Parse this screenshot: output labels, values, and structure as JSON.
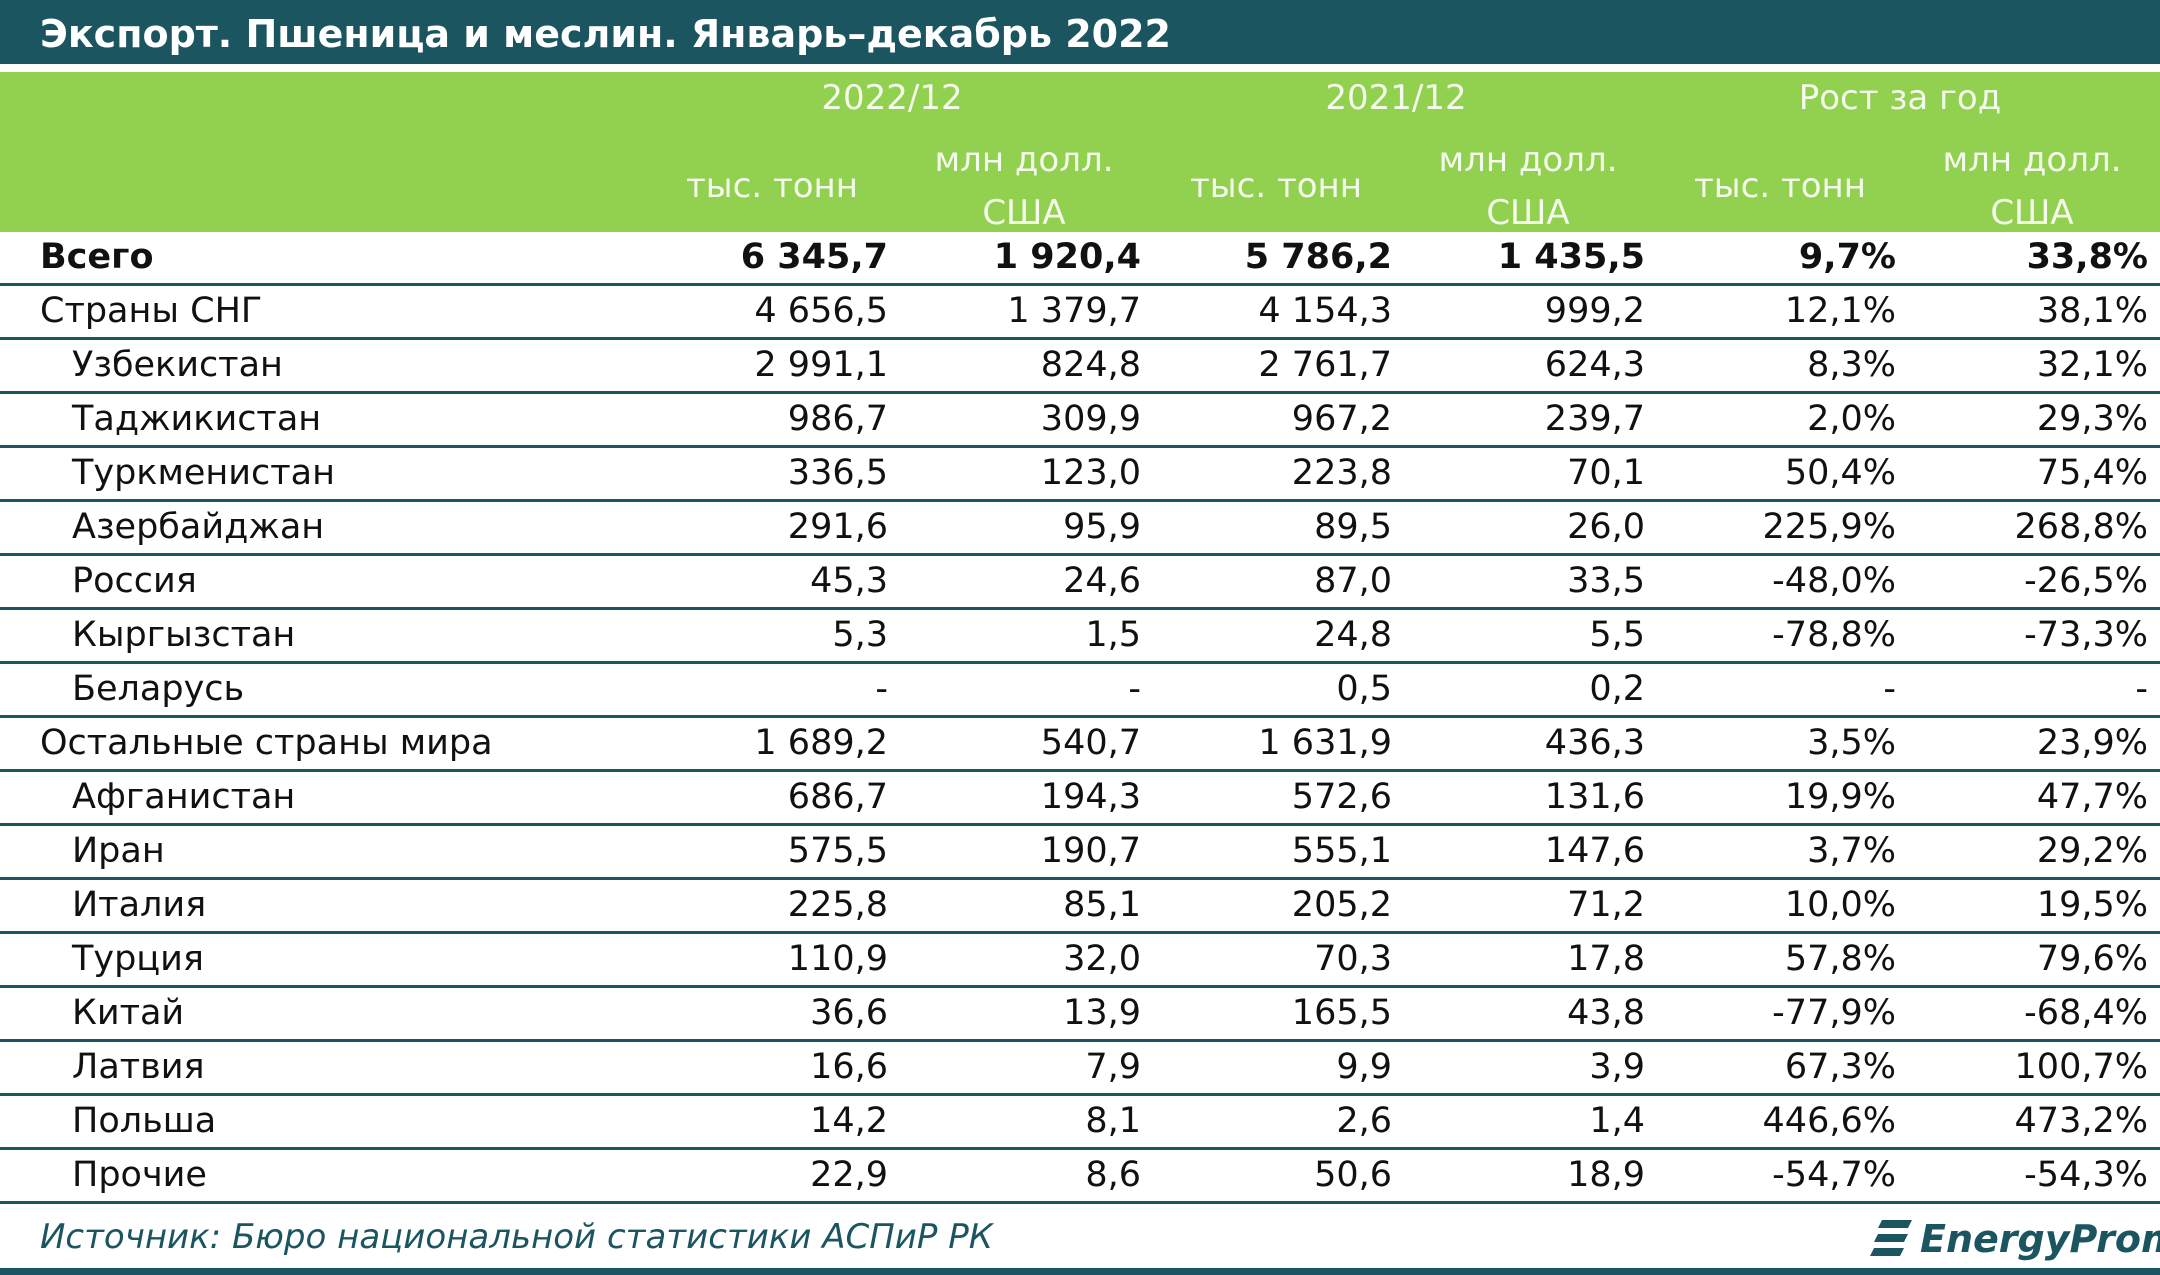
{
  "title": "Экспорт. Пшеница и меслин. Январь–декабрь 2022",
  "header": {
    "groups": [
      "2022/12",
      "2021/12",
      "Рост за год"
    ],
    "unit_tons": "тыс. тонн",
    "unit_usd_line1": "млн долл.",
    "unit_usd_line2": "США"
  },
  "rows": [
    {
      "name": "Всего",
      "values": [
        "6 345,7",
        "1 920,4",
        "5 786,2",
        "1 435,5",
        "9,7%",
        "33,8%"
      ]
    },
    {
      "name": "Страны СНГ",
      "values": [
        "4 656,5",
        "1 379,7",
        "4 154,3",
        "999,2",
        "12,1%",
        "38,1%"
      ]
    },
    {
      "name": "Узбекистан",
      "values": [
        "2 991,1",
        "824,8",
        "2 761,7",
        "624,3",
        "8,3%",
        "32,1%"
      ]
    },
    {
      "name": "Таджикистан",
      "values": [
        "986,7",
        "309,9",
        "967,2",
        "239,7",
        "2,0%",
        "29,3%"
      ]
    },
    {
      "name": "Туркменистан",
      "values": [
        "336,5",
        "123,0",
        "223,8",
        "70,1",
        "50,4%",
        "75,4%"
      ]
    },
    {
      "name": "Азербайджан",
      "values": [
        "291,6",
        "95,9",
        "89,5",
        "26,0",
        "225,9%",
        "268,8%"
      ]
    },
    {
      "name": "Россия",
      "values": [
        "45,3",
        "24,6",
        "87,0",
        "33,5",
        "-48,0%",
        "-26,5%"
      ]
    },
    {
      "name": "Кыргызстан",
      "values": [
        "5,3",
        "1,5",
        "24,8",
        "5,5",
        "-78,8%",
        "-73,3%"
      ]
    },
    {
      "name": "Беларусь",
      "values": [
        "-",
        "-",
        "0,5",
        "0,2",
        "-",
        "-"
      ]
    },
    {
      "name": "Остальные страны мира",
      "values": [
        "1 689,2",
        "540,7",
        "1 631,9",
        "436,3",
        "3,5%",
        "23,9%"
      ]
    },
    {
      "name": "Афганистан",
      "values": [
        "686,7",
        "194,3",
        "572,6",
        "131,6",
        "19,9%",
        "47,7%"
      ]
    },
    {
      "name": "Иран",
      "values": [
        "575,5",
        "190,7",
        "555,1",
        "147,6",
        "3,7%",
        "29,2%"
      ]
    },
    {
      "name": "Италия",
      "values": [
        "225,8",
        "85,1",
        "205,2",
        "71,2",
        "10,0%",
        "19,5%"
      ]
    },
    {
      "name": "Турция",
      "values": [
        "110,9",
        "32,0",
        "70,3",
        "17,8",
        "57,8%",
        "79,6%"
      ]
    },
    {
      "name": "Китай",
      "values": [
        "36,6",
        "13,9",
        "165,5",
        "43,8",
        "-77,9%",
        "-68,4%"
      ]
    },
    {
      "name": "Латвия",
      "values": [
        "16,6",
        "7,9",
        "9,9",
        "3,9",
        "67,3%",
        "100,7%"
      ]
    },
    {
      "name": "Польша",
      "values": [
        "14,2",
        "8,1",
        "2,6",
        "1,4",
        "446,6%",
        "473,2%"
      ]
    },
    {
      "name": "Прочие",
      "values": [
        "22,9",
        "8,6",
        "50,6",
        "18,9",
        "-54,7%",
        "-54,3%"
      ]
    }
  ],
  "source": "Источник: Бюро национальной статистики АСПиР РК",
  "logo_text": "EnergyProm",
  "colors": {
    "header_dark": "#1a5560",
    "header_green": "#92d050"
  }
}
